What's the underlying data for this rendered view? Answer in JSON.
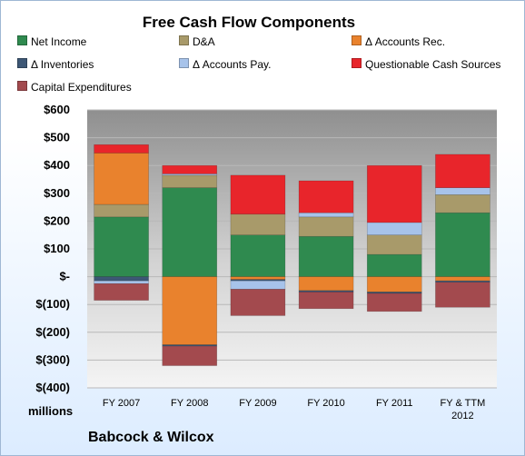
{
  "chart_data": {
    "type": "bar",
    "stacked": true,
    "title": "Free Cash Flow Components",
    "units_label": "millions",
    "company": "Babcock & Wilcox",
    "categories": [
      "FY 2007",
      "FY 2008",
      "FY 2009",
      "FY 2010",
      "FY 2011",
      "FY & TTM 2012"
    ],
    "ylim": [
      -400,
      600
    ],
    "yticks": [
      -400,
      -300,
      -200,
      -100,
      0,
      100,
      200,
      300,
      400,
      500,
      600
    ],
    "ytick_labels": [
      "$(400)",
      "$(300)",
      "$(200)",
      "$(100)",
      "$-",
      "$100",
      "$200",
      "$300",
      "$400",
      "$500",
      "$600"
    ],
    "grid": true,
    "legend_position": "top",
    "series": [
      {
        "name": "Net Income",
        "color": "#2f8a4f",
        "values": [
          215,
          320,
          150,
          145,
          80,
          230
        ]
      },
      {
        "name": "D&A",
        "color": "#a89a6a",
        "values": [
          45,
          45,
          75,
          70,
          70,
          65
        ]
      },
      {
        "name": "Δ Accounts Rec.",
        "color": "#e9822d",
        "values": [
          185,
          -245,
          -10,
          -50,
          -55,
          -15
        ]
      },
      {
        "name": "Δ Inventories",
        "color": "#3d5775",
        "values": [
          -15,
          -5,
          -5,
          -5,
          -5,
          -5
        ]
      },
      {
        "name": "Δ Accounts Pay.",
        "color": "#a7c3ea",
        "values": [
          -10,
          5,
          -30,
          15,
          45,
          25
        ]
      },
      {
        "name": "Questionable Cash Sources",
        "color": "#e8252b",
        "values": [
          30,
          30,
          140,
          115,
          205,
          120
        ]
      },
      {
        "name": "Capital Expenditures",
        "color": "#a34a4e",
        "values": [
          -60,
          -70,
          -95,
          -60,
          -65,
          -90
        ]
      }
    ]
  }
}
